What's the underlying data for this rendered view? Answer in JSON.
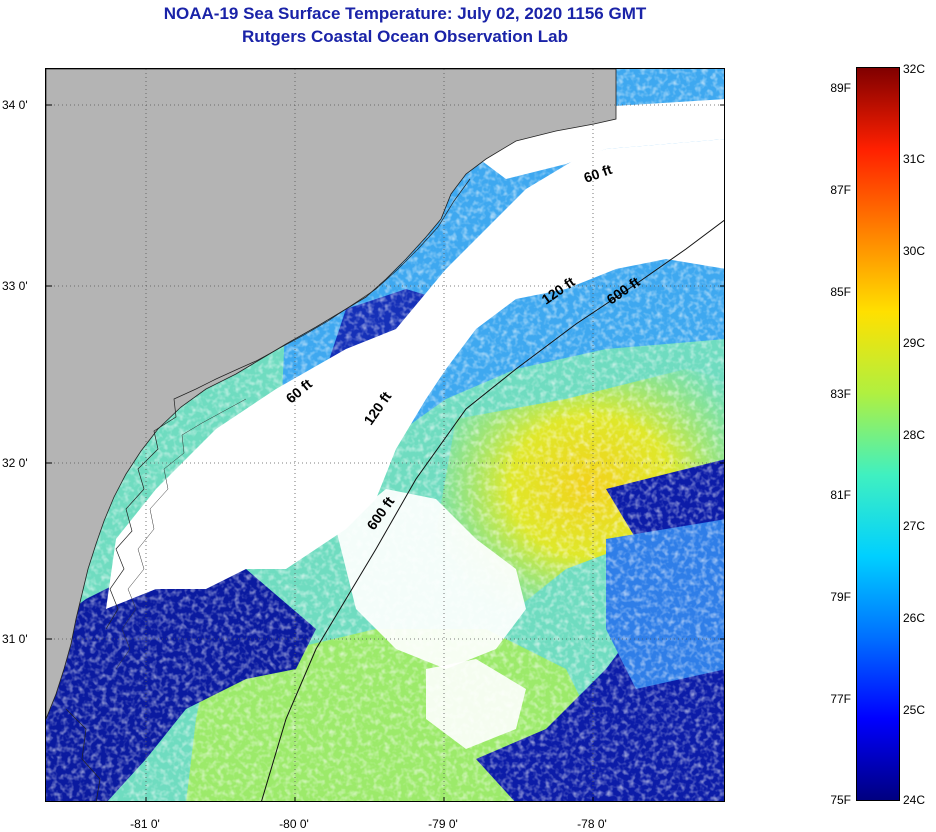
{
  "header": {
    "title": "NOAA-19 Sea Surface Temperature:  July 02, 2020 1156 GMT",
    "subtitle": "Rutgers Coastal Ocean Observation Lab"
  },
  "map": {
    "lat_ticks": [
      "34 0'",
      "33 0'",
      "32 0'",
      "31 0'"
    ],
    "lon_ticks": [
      "-81 0'",
      "-80 0'",
      "-79 0'",
      "-78 0'"
    ],
    "isobath_labels": [
      "60 ft",
      "120 ft",
      "600 ft",
      "60 ft",
      "120 ft",
      "600 ft"
    ],
    "colors": {
      "land": "#b4b4b4",
      "cloud": "#ffffff",
      "cold": "#00007d",
      "warm": "#e6e61e"
    }
  },
  "colorbar": {
    "celsius": [
      "32C",
      "31C",
      "30C",
      "29C",
      "28C",
      "27C",
      "26C",
      "25C",
      "24C"
    ],
    "fahrenheit": [
      "89F",
      "87F",
      "85F",
      "83F",
      "81F",
      "79F",
      "77F",
      "75F"
    ],
    "gradient": [
      "#000080",
      "#0000ff",
      "#0070ff",
      "#00d0ff",
      "#40f0c0",
      "#b0f040",
      "#ffe000",
      "#ff8000",
      "#ff2000",
      "#800000"
    ]
  }
}
